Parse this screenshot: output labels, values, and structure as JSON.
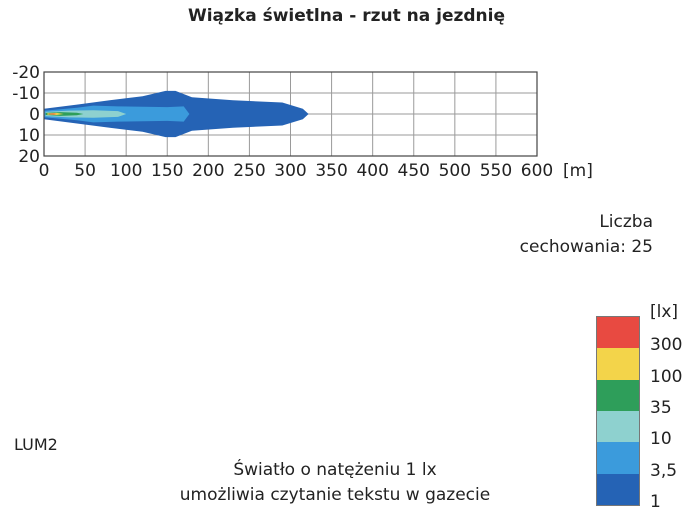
{
  "chart_data": {
    "type": "heatmap",
    "title": "Wiązka świetlna - rzut na jezdnię",
    "x_unit": "[m]",
    "xlim": [
      0,
      600
    ],
    "ylim": [
      -20,
      20
    ],
    "x_ticks": [
      0,
      50,
      100,
      150,
      200,
      250,
      300,
      350,
      400,
      450,
      500,
      550,
      600
    ],
    "y_ticks": [
      "-20",
      "-10",
      "0",
      "10",
      "20"
    ],
    "grid": true,
    "isolux_levels_lx": [
      {
        "level": "1",
        "color": "#2563b5",
        "outline": [
          [
            0,
            -2.5
          ],
          [
            40,
            -4.5
          ],
          [
            80,
            -6.5
          ],
          [
            120,
            -8.5
          ],
          [
            148,
            -11
          ],
          [
            160,
            -11
          ],
          [
            180,
            -8
          ],
          [
            230,
            -6.5
          ],
          [
            290,
            -5.5
          ],
          [
            315,
            -2.5
          ],
          [
            322,
            0
          ],
          [
            315,
            2.5
          ],
          [
            290,
            5.5
          ],
          [
            230,
            6.5
          ],
          [
            180,
            8
          ],
          [
            160,
            11
          ],
          [
            148,
            11
          ],
          [
            120,
            8.5
          ],
          [
            80,
            6.5
          ],
          [
            40,
            4.5
          ],
          [
            0,
            2.5
          ]
        ]
      },
      {
        "level": "3,5",
        "color": "#3b9bdc",
        "outline": [
          [
            0,
            -1.5
          ],
          [
            40,
            -3
          ],
          [
            60,
            -4
          ],
          [
            90,
            -3.6
          ],
          [
            150,
            -3.3
          ],
          [
            170,
            -3.6
          ],
          [
            177,
            0
          ],
          [
            170,
            3.6
          ],
          [
            150,
            3.3
          ],
          [
            90,
            3.6
          ],
          [
            60,
            4
          ],
          [
            40,
            3
          ],
          [
            0,
            1.5
          ]
        ]
      },
      {
        "level": "10",
        "color": "#8ed1cf",
        "outline": [
          [
            2,
            -1
          ],
          [
            30,
            -1.6
          ],
          [
            60,
            -1.8
          ],
          [
            90,
            -1.4
          ],
          [
            100,
            0
          ],
          [
            90,
            1.4
          ],
          [
            60,
            1.8
          ],
          [
            30,
            1.6
          ],
          [
            2,
            1
          ]
        ]
      },
      {
        "level": "35",
        "color": "#2e9e5a",
        "outline": [
          [
            2,
            -0.5
          ],
          [
            20,
            -0.9
          ],
          [
            40,
            -0.6
          ],
          [
            48,
            0
          ],
          [
            40,
            0.6
          ],
          [
            20,
            0.9
          ],
          [
            2,
            0.5
          ]
        ]
      },
      {
        "level": "100",
        "color": "#f3d44a",
        "outline": [
          [
            4,
            -0.3
          ],
          [
            15,
            -0.5
          ],
          [
            24,
            0
          ],
          [
            15,
            0.5
          ],
          [
            4,
            0.3
          ]
        ]
      },
      {
        "level": "300",
        "color": "#e84a41",
        "outline": [
          [
            6,
            -0.15
          ],
          [
            12,
            -0.25
          ],
          [
            16,
            0
          ],
          [
            12,
            0.25
          ],
          [
            6,
            0.15
          ]
        ]
      }
    ],
    "legend": {
      "unit": "[lx]",
      "placement": "bottom-right",
      "entries": [
        {
          "label": "300",
          "color": "#e84a41"
        },
        {
          "label": "100",
          "color": "#f3d44a"
        },
        {
          "label": "35",
          "color": "#2e9e5a"
        },
        {
          "label": "10",
          "color": "#8ed1cf"
        },
        {
          "label": "3,5",
          "color": "#3b9bdc"
        },
        {
          "label": "1",
          "color": "#2563b5"
        }
      ]
    }
  },
  "hatch_text_line1": "Liczba",
  "hatch_text_line2": "cechowania: 25",
  "lamp_label": "LUM2",
  "note_line1": "Światło o natężeniu 1 lx",
  "note_line2": "umożliwia czytanie tekstu w gazecie"
}
